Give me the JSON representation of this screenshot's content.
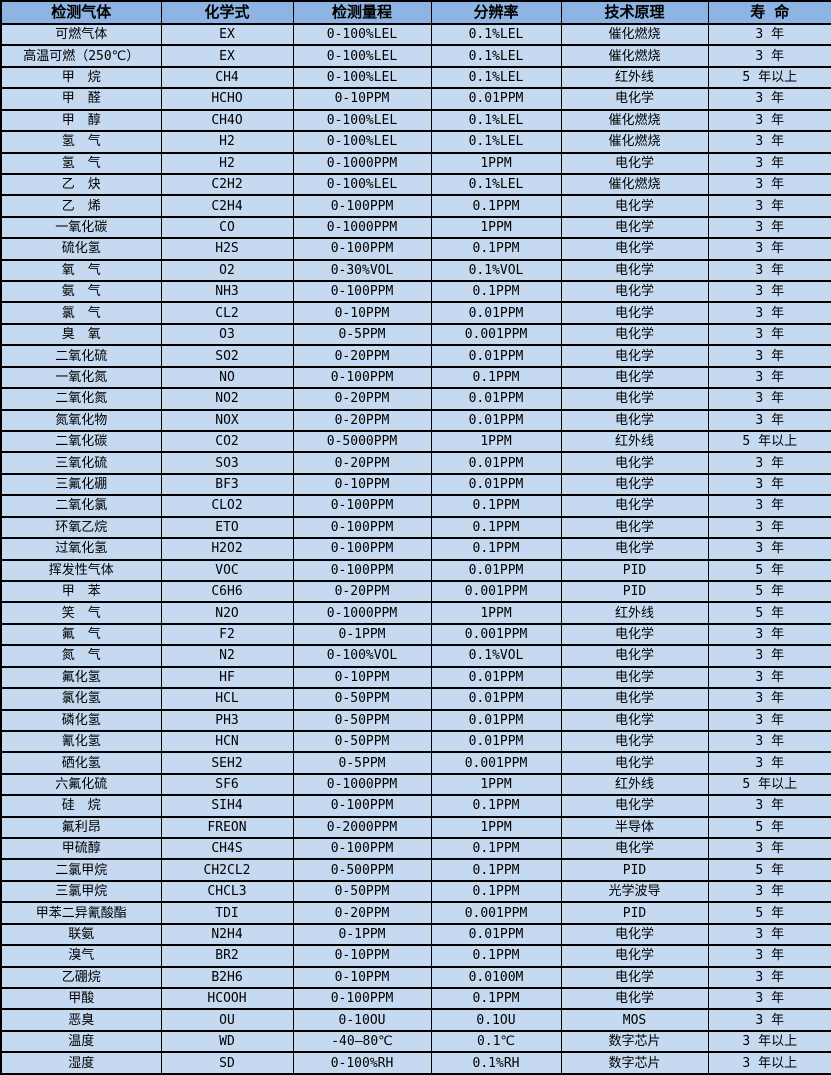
{
  "table": {
    "colors": {
      "header_bg": "#8db4e2",
      "row_bg": "#c5d9f1",
      "border": "#000000",
      "text": "#000000"
    },
    "columns": [
      {
        "key": "gas",
        "label": "检测气体"
      },
      {
        "key": "formula",
        "label": "化学式"
      },
      {
        "key": "range",
        "label": "检测量程"
      },
      {
        "key": "resolution",
        "label": "分辨率"
      },
      {
        "key": "principle",
        "label": "技术原理"
      },
      {
        "key": "lifespan",
        "label": "寿 命"
      }
    ],
    "rows": [
      {
        "gas": "可燃气体",
        "formula": "EX",
        "range": "0-100%LEL",
        "resolution": "0.1%LEL",
        "principle": "催化燃烧",
        "lifespan": "3 年"
      },
      {
        "gas": "高温可燃（250℃）",
        "formula": "EX",
        "range": "0-100%LEL",
        "resolution": "0.1%LEL",
        "principle": "催化燃烧",
        "lifespan": "3 年"
      },
      {
        "gas": "甲　烷",
        "formula": "CH4",
        "range": "0-100%LEL",
        "resolution": "0.1%LEL",
        "principle": "红外线",
        "lifespan": "5 年以上"
      },
      {
        "gas": "甲　醛",
        "formula": "HCHO",
        "range": "0-10PPM",
        "resolution": "0.01PPM",
        "principle": "电化学",
        "lifespan": "3 年"
      },
      {
        "gas": "甲　醇",
        "formula": "CH4O",
        "range": "0-100%LEL",
        "resolution": "0.1%LEL",
        "principle": "催化燃烧",
        "lifespan": "3 年"
      },
      {
        "gas": "氢　气",
        "formula": "H2",
        "range": "0-100%LEL",
        "resolution": "0.1%LEL",
        "principle": "催化燃烧",
        "lifespan": "3 年"
      },
      {
        "gas": "氢　气",
        "formula": "H2",
        "range": "0-1000PPM",
        "resolution": "1PPM",
        "principle": "电化学",
        "lifespan": "3 年"
      },
      {
        "gas": "乙　炔",
        "formula": "C2H2",
        "range": "0-100%LEL",
        "resolution": "0.1%LEL",
        "principle": "催化燃烧",
        "lifespan": "3 年"
      },
      {
        "gas": "乙　烯",
        "formula": "C2H4",
        "range": "0-100PPM",
        "resolution": "0.1PPM",
        "principle": "电化学",
        "lifespan": "3 年"
      },
      {
        "gas": "一氧化碳",
        "formula": "CO",
        "range": "0-1000PPM",
        "resolution": "1PPM",
        "principle": "电化学",
        "lifespan": "3 年"
      },
      {
        "gas": "硫化氢",
        "formula": "H2S",
        "range": "0-100PPM",
        "resolution": "0.1PPM",
        "principle": "电化学",
        "lifespan": "3 年"
      },
      {
        "gas": "氧　气",
        "formula": "O2",
        "range": "0-30%VOL",
        "resolution": "0.1%VOL",
        "principle": "电化学",
        "lifespan": "3 年"
      },
      {
        "gas": "氨　气",
        "formula": "NH3",
        "range": "0-100PPM",
        "resolution": "0.1PPM",
        "principle": "电化学",
        "lifespan": "3 年"
      },
      {
        "gas": "氯　气",
        "formula": "CL2",
        "range": "0-10PPM",
        "resolution": "0.01PPM",
        "principle": "电化学",
        "lifespan": "3 年"
      },
      {
        "gas": "臭　氧",
        "formula": "O3",
        "range": "0-5PPM",
        "resolution": "0.001PPM",
        "principle": "电化学",
        "lifespan": "3 年"
      },
      {
        "gas": "二氧化硫",
        "formula": "SO2",
        "range": "0-20PPM",
        "resolution": "0.01PPM",
        "principle": "电化学",
        "lifespan": "3 年"
      },
      {
        "gas": "一氧化氮",
        "formula": "NO",
        "range": "0-100PPM",
        "resolution": "0.1PPM",
        "principle": "电化学",
        "lifespan": "3 年"
      },
      {
        "gas": "二氧化氮",
        "formula": "NO2",
        "range": "0-20PPM",
        "resolution": "0.01PPM",
        "principle": "电化学",
        "lifespan": "3 年"
      },
      {
        "gas": "氮氧化物",
        "formula": "NOX",
        "range": "0-20PPM",
        "resolution": "0.01PPM",
        "principle": "电化学",
        "lifespan": "3 年"
      },
      {
        "gas": "二氧化碳",
        "formula": "CO2",
        "range": "0-5000PPM",
        "resolution": "1PPM",
        "principle": "红外线",
        "lifespan": "5 年以上"
      },
      {
        "gas": "三氧化硫",
        "formula": "SO3",
        "range": "0-20PPM",
        "resolution": "0.01PPM",
        "principle": "电化学",
        "lifespan": "3 年"
      },
      {
        "gas": "三氟化硼",
        "formula": "BF3",
        "range": "0-10PPM",
        "resolution": "0.01PPM",
        "principle": "电化学",
        "lifespan": "3 年"
      },
      {
        "gas": "二氧化氯",
        "formula": "CLO2",
        "range": "0-100PPM",
        "resolution": "0.1PPM",
        "principle": "电化学",
        "lifespan": "3 年"
      },
      {
        "gas": "环氧乙烷",
        "formula": "ETO",
        "range": "0-100PPM",
        "resolution": "0.1PPM",
        "principle": "电化学",
        "lifespan": "3 年"
      },
      {
        "gas": "过氧化氢",
        "formula": "H2O2",
        "range": "0-100PPM",
        "resolution": "0.1PPM",
        "principle": "电化学",
        "lifespan": "3 年"
      },
      {
        "gas": "挥发性气体",
        "formula": "VOC",
        "range": "0-100PPM",
        "resolution": "0.01PPM",
        "principle": "PID",
        "lifespan": "5 年"
      },
      {
        "gas": "甲　苯",
        "formula": "C6H6",
        "range": "0-20PPM",
        "resolution": "0.001PPM",
        "principle": "PID",
        "lifespan": "5 年"
      },
      {
        "gas": "笑　气",
        "formula": "N2O",
        "range": "0-1000PPM",
        "resolution": "1PPM",
        "principle": "红外线",
        "lifespan": "5 年"
      },
      {
        "gas": "氟　气",
        "formula": "F2",
        "range": "0-1PPM",
        "resolution": "0.001PPM",
        "principle": "电化学",
        "lifespan": "3 年"
      },
      {
        "gas": "氮　气",
        "formula": "N2",
        "range": "0-100%VOL",
        "resolution": "0.1%VOL",
        "principle": "电化学",
        "lifespan": "3 年"
      },
      {
        "gas": "氟化氢",
        "formula": "HF",
        "range": "0-10PPM",
        "resolution": "0.01PPM",
        "principle": "电化学",
        "lifespan": "3 年"
      },
      {
        "gas": "氯化氢",
        "formula": "HCL",
        "range": "0-50PPM",
        "resolution": "0.01PPM",
        "principle": "电化学",
        "lifespan": "3 年"
      },
      {
        "gas": "磷化氢",
        "formula": "PH3",
        "range": "0-50PPM",
        "resolution": "0.01PPM",
        "principle": "电化学",
        "lifespan": "3 年"
      },
      {
        "gas": "氰化氢",
        "formula": "HCN",
        "range": "0-50PPM",
        "resolution": "0.01PPM",
        "principle": "电化学",
        "lifespan": "3 年"
      },
      {
        "gas": "硒化氢",
        "formula": "SEH2",
        "range": "0-5PPM",
        "resolution": "0.001PPM",
        "principle": "电化学",
        "lifespan": "3 年"
      },
      {
        "gas": "六氟化硫",
        "formula": "SF6",
        "range": "0-1000PPM",
        "resolution": "1PPM",
        "principle": "红外线",
        "lifespan": "5 年以上"
      },
      {
        "gas": "硅　烷",
        "formula": "SIH4",
        "range": "0-100PPM",
        "resolution": "0.1PPM",
        "principle": "电化学",
        "lifespan": "3 年"
      },
      {
        "gas": "氟利昂",
        "formula": "FREON",
        "range": "0-2000PPM",
        "resolution": "1PPM",
        "principle": "半导体",
        "lifespan": "5 年"
      },
      {
        "gas": "甲硫醇",
        "formula": "CH4S",
        "range": "0-100PPM",
        "resolution": "0.1PPM",
        "principle": "电化学",
        "lifespan": "3 年"
      },
      {
        "gas": "二氯甲烷",
        "formula": "CH2CL2",
        "range": "0-500PPM",
        "resolution": "0.1PPM",
        "principle": "PID",
        "lifespan": "5 年"
      },
      {
        "gas": "三氯甲烷",
        "formula": "CHCL3",
        "range": "0-50PPM",
        "resolution": "0.1PPM",
        "principle": "光学波导",
        "lifespan": "3 年"
      },
      {
        "gas": "甲苯二异氰酸酯",
        "formula": "TDI",
        "range": "0-20PPM",
        "resolution": "0.001PPM",
        "principle": "PID",
        "lifespan": "5 年"
      },
      {
        "gas": "联氨",
        "formula": "N2H4",
        "range": "0-1PPM",
        "resolution": "0.01PPM",
        "principle": "电化学",
        "lifespan": "3 年"
      },
      {
        "gas": "溴气",
        "formula": "BR2",
        "range": "0-10PPM",
        "resolution": "0.1PPM",
        "principle": "电化学",
        "lifespan": "3 年"
      },
      {
        "gas": "乙硼烷",
        "formula": "B2H6",
        "range": "0-10PPM",
        "resolution": "0.0100M",
        "principle": "电化学",
        "lifespan": "3 年"
      },
      {
        "gas": "甲酸",
        "formula": "HCOOH",
        "range": "0-100PPM",
        "resolution": "0.1PPM",
        "principle": "电化学",
        "lifespan": "3 年"
      },
      {
        "gas": "恶臭",
        "formula": "OU",
        "range": "0-10OU",
        "resolution": "0.1OU",
        "principle": "MOS",
        "lifespan": "3 年"
      },
      {
        "gas": "温度",
        "formula": "WD",
        "range": "-40—80℃",
        "resolution": "0.1℃",
        "principle": "数字芯片",
        "lifespan": "3 年以上"
      },
      {
        "gas": "湿度",
        "formula": "SD",
        "range": "0-100%RH",
        "resolution": "0.1%RH",
        "principle": "数字芯片",
        "lifespan": "3 年以上"
      }
    ]
  }
}
